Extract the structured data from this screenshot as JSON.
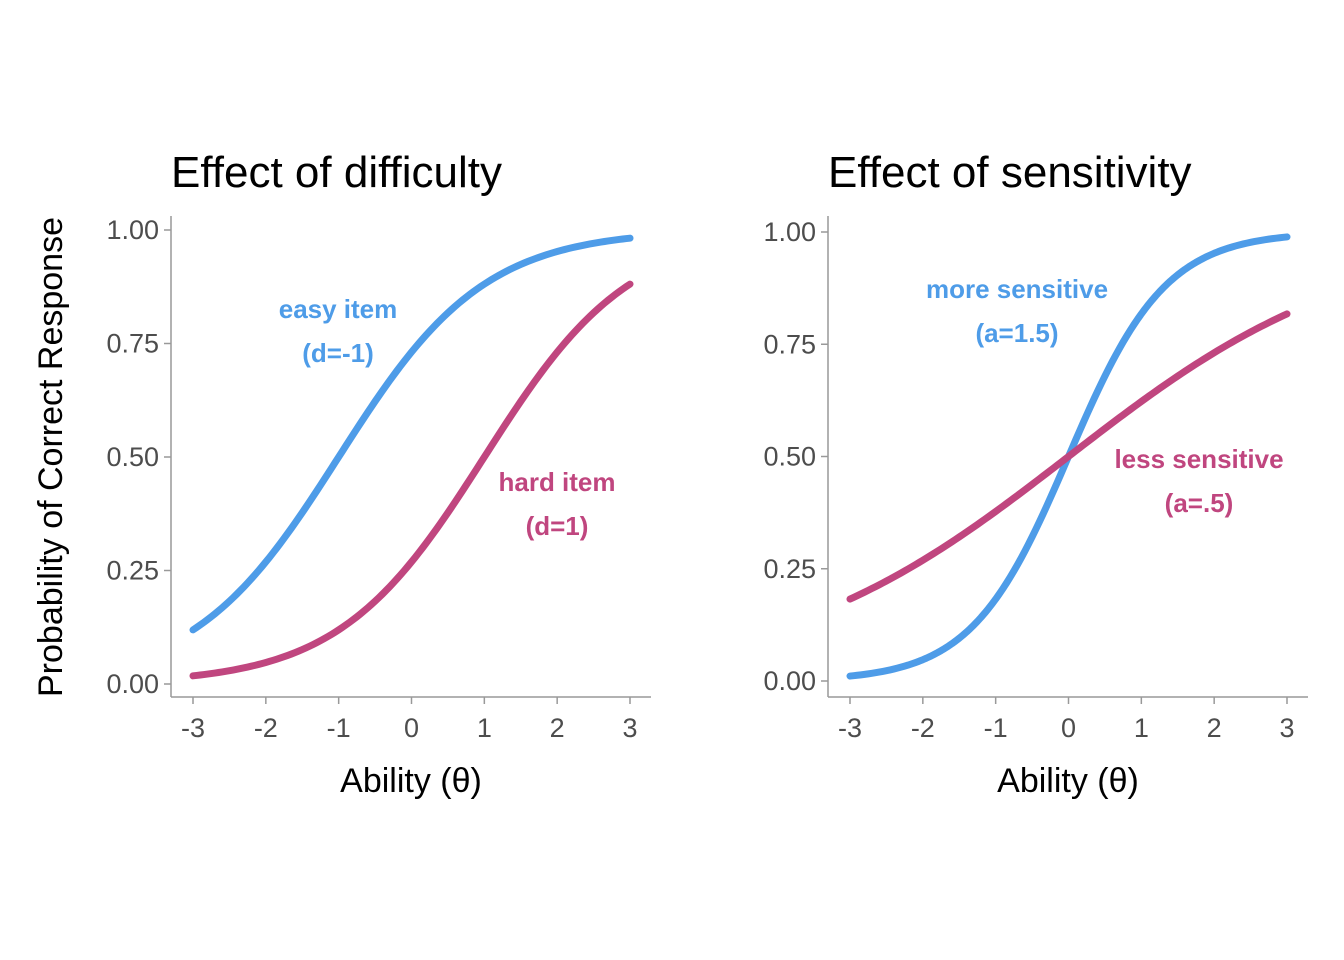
{
  "figure": {
    "ylabel": "Probability of Correct Response"
  },
  "chart_data": [
    {
      "type": "line",
      "title": "Effect of difficulty",
      "xlabel": "Ability (θ)",
      "ylabel": "Probability of Correct Response",
      "xlim": [
        -3,
        3
      ],
      "ylim": [
        0,
        1
      ],
      "x_ticks": [
        -3,
        -2,
        -1,
        0,
        1,
        2,
        3
      ],
      "x_tick_labels": [
        "-3",
        "-2",
        "-1",
        "0",
        "1",
        "2",
        "3"
      ],
      "y_ticks": [
        0,
        0.25,
        0.5,
        0.75,
        1
      ],
      "y_tick_labels": [
        "0.00",
        "0.25",
        "0.50",
        "0.75",
        "1.00"
      ],
      "grid": false,
      "legend": "none",
      "series": [
        {
          "label": "easy item",
          "sublabel": "(d=-1)",
          "a": 1,
          "d": -1,
          "color": "#4e9ce8",
          "x": [
            -3,
            -2,
            -1,
            0,
            1,
            2,
            3
          ],
          "y": [
            0.12,
            0.27,
            0.5,
            0.73,
            0.88,
            0.95,
            0.98
          ]
        },
        {
          "label": "hard item",
          "sublabel": "(d=1)",
          "a": 1,
          "d": 1,
          "color": "#c0467f",
          "x": [
            -3,
            -2,
            -1,
            0,
            1,
            2,
            3
          ],
          "y": [
            0.02,
            0.05,
            0.12,
            0.27,
            0.5,
            0.73,
            0.88
          ]
        }
      ]
    },
    {
      "type": "line",
      "title": "Effect of sensitivity",
      "xlabel": "Ability (θ)",
      "xlim": [
        -3,
        3
      ],
      "ylim": [
        0,
        1
      ],
      "x_ticks": [
        -3,
        -2,
        -1,
        0,
        1,
        2,
        3
      ],
      "x_tick_labels": [
        "-3",
        "-2",
        "-1",
        "0",
        "1",
        "2",
        "3"
      ],
      "y_ticks": [
        0,
        0.25,
        0.5,
        0.75,
        1
      ],
      "y_tick_labels": [
        "0.00",
        "0.25",
        "0.50",
        "0.75",
        "1.00"
      ],
      "grid": false,
      "legend": "none",
      "series": [
        {
          "label": "more sensitive",
          "sublabel": "(a=1.5)",
          "a": 1.5,
          "d": 0,
          "color": "#4e9ce8",
          "x": [
            -3,
            -2,
            -1,
            0,
            1,
            2,
            3
          ],
          "y": [
            0.01,
            0.05,
            0.18,
            0.5,
            0.82,
            0.95,
            0.99
          ]
        },
        {
          "label": "less sensitive",
          "sublabel": "(a=.5)",
          "a": 0.5,
          "d": 0,
          "color": "#c0467f",
          "x": [
            -3,
            -2,
            -1,
            0,
            1,
            2,
            3
          ],
          "y": [
            0.18,
            0.27,
            0.38,
            0.5,
            0.62,
            0.73,
            0.82
          ]
        }
      ]
    }
  ]
}
